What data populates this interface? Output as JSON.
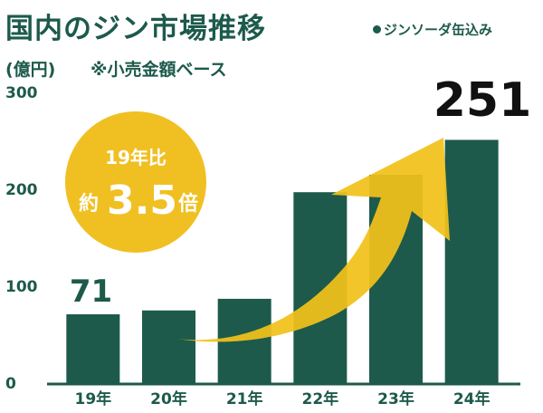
{
  "header": {
    "title": "国内のジン市場推移",
    "note": "ジンソーダ缶込み"
  },
  "unit_label": "(億円)",
  "sub_note": "※小売金額ベース",
  "badge": {
    "top": "19年比",
    "prefix": "約",
    "value": "3.5",
    "suffix": "倍"
  },
  "colors": {
    "bar": "#1d5a4b",
    "arrow": "#f1c21b",
    "badge": "#f0c022",
    "text": "#1d5a4b",
    "highlight_label": "#111111"
  },
  "chart_data": {
    "type": "bar",
    "categories": [
      "19年",
      "20年",
      "21年",
      "22年",
      "23年",
      "24年"
    ],
    "values": [
      71,
      75,
      87,
      197,
      215,
      251
    ],
    "yticks": [
      0,
      100,
      200,
      300
    ],
    "ylim": [
      0,
      300
    ],
    "ylabel": "(億円)",
    "title": "国内のジン市場推移",
    "data_labels": [
      {
        "category": "19年",
        "text": "71"
      },
      {
        "category": "24年",
        "text": "251"
      }
    ],
    "grid": false,
    "legend": "none"
  }
}
